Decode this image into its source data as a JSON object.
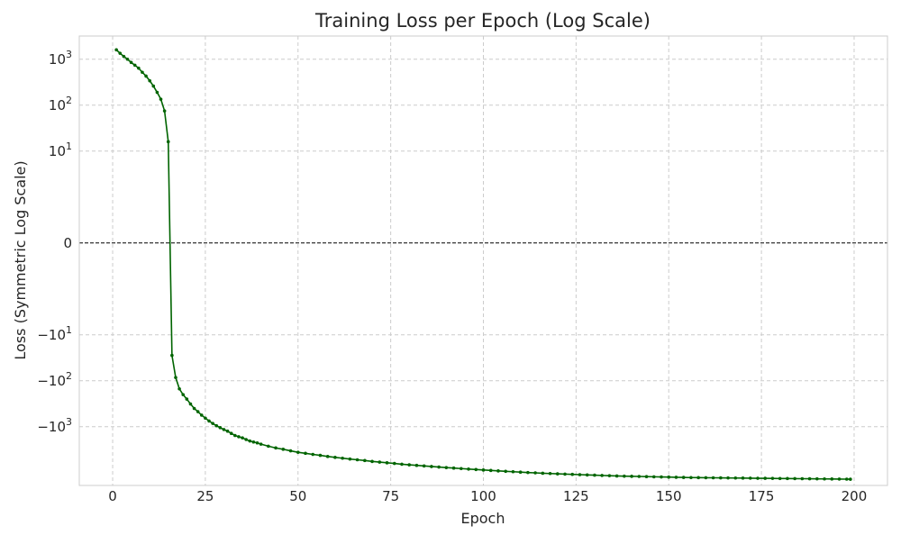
{
  "chart_data": {
    "type": "line",
    "title": "Training Loss per Epoch (Log Scale)",
    "xlabel": "Epoch",
    "ylabel": "Loss (Symmetric Log Scale)",
    "xlim": [
      -9,
      209
    ],
    "xticks": [
      0,
      25,
      50,
      75,
      100,
      125,
      150,
      175,
      200
    ],
    "yscale": "symlog",
    "yscale_linthresh": 1,
    "ylim": [
      -19000,
      3200
    ],
    "yticks": [
      {
        "value": 1000,
        "label": "10^3"
      },
      {
        "value": 100,
        "label": "10^2"
      },
      {
        "value": 10,
        "label": "10^1"
      },
      {
        "value": 0,
        "label": "0"
      },
      {
        "value": -10,
        "label": "−10^1"
      },
      {
        "value": -100,
        "label": "−10^2"
      },
      {
        "value": -1000,
        "label": "−10^3"
      }
    ],
    "grid": true,
    "reference_line": {
      "y": 0,
      "style": "dashed",
      "color": "#000000"
    },
    "series": [
      {
        "color": "#006400",
        "marker": "dot",
        "points": [
          [
            1,
            1600
          ],
          [
            2,
            1350
          ],
          [
            3,
            1150
          ],
          [
            4,
            1000
          ],
          [
            5,
            850
          ],
          [
            6,
            740
          ],
          [
            7,
            640
          ],
          [
            8,
            520
          ],
          [
            9,
            430
          ],
          [
            10,
            340
          ],
          [
            11,
            260
          ],
          [
            12,
            190
          ],
          [
            13,
            135
          ],
          [
            14,
            75
          ],
          [
            15,
            16
          ],
          [
            16,
            -28
          ],
          [
            17,
            -85
          ],
          [
            18,
            -150
          ],
          [
            19,
            -200
          ],
          [
            20,
            -250
          ],
          [
            21,
            -320
          ],
          [
            22,
            -400
          ],
          [
            23,
            -470
          ],
          [
            24,
            -560
          ],
          [
            25,
            -650
          ],
          [
            26,
            -750
          ],
          [
            27,
            -850
          ],
          [
            28,
            -950
          ],
          [
            29,
            -1050
          ],
          [
            30,
            -1150
          ],
          [
            31,
            -1250
          ],
          [
            32,
            -1400
          ],
          [
            33,
            -1550
          ],
          [
            34,
            -1650
          ],
          [
            35,
            -1750
          ],
          [
            36,
            -1900
          ],
          [
            37,
            -2050
          ],
          [
            38,
            -2150
          ],
          [
            39,
            -2250
          ],
          [
            40,
            -2400
          ],
          [
            42,
            -2650
          ],
          [
            44,
            -2900
          ],
          [
            46,
            -3100
          ],
          [
            48,
            -3350
          ],
          [
            50,
            -3600
          ],
          [
            52,
            -3800
          ],
          [
            54,
            -4000
          ],
          [
            56,
            -4200
          ],
          [
            58,
            -4450
          ],
          [
            60,
            -4650
          ],
          [
            62,
            -4850
          ],
          [
            64,
            -5050
          ],
          [
            66,
            -5250
          ],
          [
            68,
            -5450
          ],
          [
            70,
            -5700
          ],
          [
            72,
            -5900
          ],
          [
            74,
            -6100
          ],
          [
            76,
            -6300
          ],
          [
            78,
            -6550
          ],
          [
            80,
            -6750
          ],
          [
            82,
            -6950
          ],
          [
            84,
            -7150
          ],
          [
            86,
            -7350
          ],
          [
            88,
            -7550
          ],
          [
            90,
            -7750
          ],
          [
            92,
            -7950
          ],
          [
            94,
            -8150
          ],
          [
            96,
            -8350
          ],
          [
            98,
            -8550
          ],
          [
            100,
            -8750
          ],
          [
            102,
            -8950
          ],
          [
            104,
            -9150
          ],
          [
            106,
            -9350
          ],
          [
            108,
            -9550
          ],
          [
            110,
            -9750
          ],
          [
            112,
            -9950
          ],
          [
            114,
            -10100
          ],
          [
            116,
            -10300
          ],
          [
            118,
            -10450
          ],
          [
            120,
            -10600
          ],
          [
            122,
            -10750
          ],
          [
            124,
            -10900
          ],
          [
            126,
            -11050
          ],
          [
            128,
            -11200
          ],
          [
            130,
            -11350
          ],
          [
            132,
            -11500
          ],
          [
            134,
            -11650
          ],
          [
            136,
            -11800
          ],
          [
            138,
            -11900
          ],
          [
            140,
            -12000
          ],
          [
            142,
            -12100
          ],
          [
            144,
            -12200
          ],
          [
            146,
            -12300
          ],
          [
            148,
            -12400
          ],
          [
            150,
            -12500
          ],
          [
            152,
            -12600
          ],
          [
            154,
            -12700
          ],
          [
            156,
            -12800
          ],
          [
            158,
            -12850
          ],
          [
            160,
            -12900
          ],
          [
            162,
            -12950
          ],
          [
            164,
            -13000
          ],
          [
            166,
            -13050
          ],
          [
            168,
            -13100
          ],
          [
            170,
            -13150
          ],
          [
            172,
            -13200
          ],
          [
            174,
            -13250
          ],
          [
            176,
            -13300
          ],
          [
            178,
            -13350
          ],
          [
            180,
            -13400
          ],
          [
            182,
            -13450
          ],
          [
            184,
            -13500
          ],
          [
            186,
            -13550
          ],
          [
            188,
            -13600
          ],
          [
            190,
            -13650
          ],
          [
            192,
            -13700
          ],
          [
            194,
            -13750
          ],
          [
            196,
            -13800
          ],
          [
            198,
            -13850
          ],
          [
            199,
            -13900
          ]
        ]
      }
    ]
  }
}
